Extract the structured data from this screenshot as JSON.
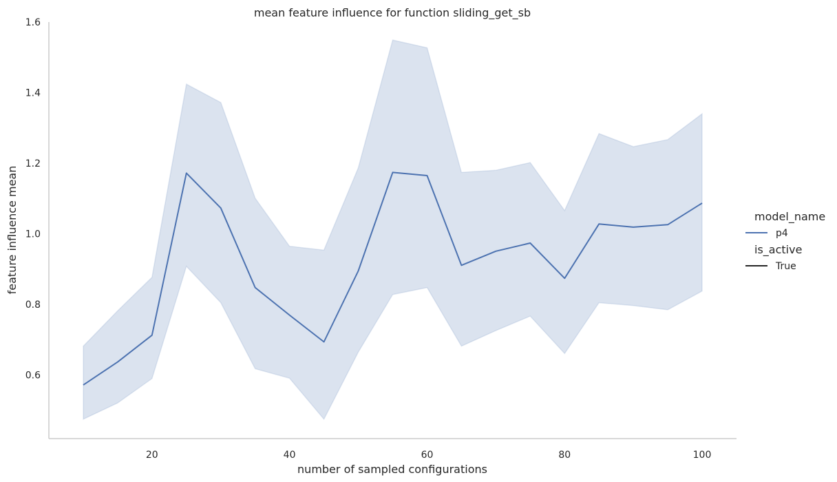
{
  "chart_data": {
    "type": "line",
    "title": "mean feature influence for function sliding_get_sb",
    "xlabel": "number of sampled configurations",
    "ylabel": "feature influence mean",
    "xlim": [
      5,
      105
    ],
    "ylim": [
      0.42,
      1.6
    ],
    "xticks": [
      "20",
      "40",
      "60",
      "80",
      "100"
    ],
    "yticks": [
      "0.6",
      "0.8",
      "1.0",
      "1.2",
      "1.4",
      "1.6"
    ],
    "grid": false,
    "legend_position": "right",
    "legend": {
      "hue_title": "model_name",
      "hue_label": "p4",
      "style_title": "is_active",
      "style_label": "True"
    },
    "x": [
      10,
      15,
      20,
      25,
      30,
      35,
      40,
      45,
      50,
      55,
      60,
      65,
      70,
      75,
      80,
      85,
      90,
      95,
      100
    ],
    "series": [
      {
        "name": "p4",
        "color": "#4c72b0",
        "values": [
          0.572,
          0.637,
          0.713,
          1.172,
          1.073,
          0.848,
          0.77,
          0.694,
          0.895,
          1.174,
          1.165,
          0.911,
          0.951,
          0.974,
          0.874,
          1.028,
          1.019,
          1.026,
          1.087
        ],
        "ci_upper": [
          0.682,
          0.782,
          0.877,
          1.424,
          1.372,
          1.101,
          0.965,
          0.954,
          1.187,
          1.549,
          1.527,
          1.174,
          1.18,
          1.202,
          1.066,
          1.284,
          1.247,
          1.267,
          1.34
        ],
        "ci_lower": [
          0.475,
          0.521,
          0.59,
          0.908,
          0.805,
          0.618,
          0.591,
          0.475,
          0.665,
          0.828,
          0.848,
          0.682,
          0.726,
          0.767,
          0.661,
          0.805,
          0.797,
          0.785,
          0.838
        ]
      }
    ]
  },
  "colors": {
    "line": "#4c72b0",
    "band": "#4c72b0",
    "axis": "#cccccc",
    "text": "#262626"
  }
}
